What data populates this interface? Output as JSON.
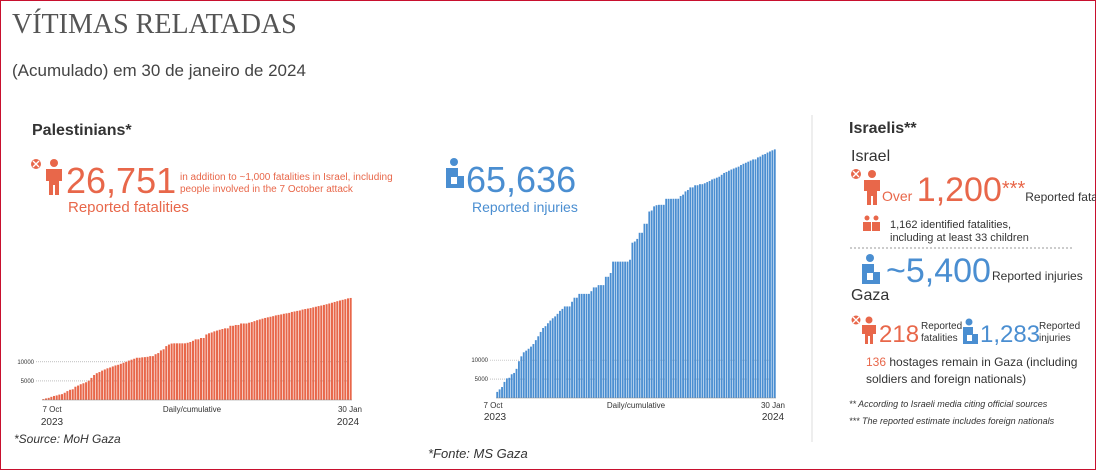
{
  "header": {
    "title": "VÍTIMAS RELATADAS",
    "subtitle": "(Acumulado) em 30 de janeiro de 2024"
  },
  "palestinians": {
    "heading": "Palestinians*",
    "fatalities": {
      "number": "26,751",
      "note": [
        "in addition to ~1,000 fatalities in Israel, including",
        "people involved in the 7 October attack"
      ],
      "label": "Reported fatalities"
    },
    "injuries": {
      "number": "65,636",
      "label": "Reported injuries"
    },
    "source": "*Source: MoH Gaza"
  },
  "charts": [
    {
      "type": "bar",
      "color": "#e8674a",
      "ylim": [
        0,
        27000
      ],
      "yticks": [
        5000,
        10000
      ],
      "grid": true,
      "x_labels": {
        "start": [
          "7 Oct",
          "2023"
        ],
        "middle": "Daily/cumulative",
        "end": [
          "30 Jan",
          "2024"
        ]
      },
      "values": [
        232,
        413,
        560,
        830,
        1055,
        1200,
        1417,
        1537,
        1900,
        2329,
        2670,
        2808,
        3478,
        3785,
        4137,
        4385,
        4651,
        5087,
        5791,
        6546,
        7028,
        7326,
        7703,
        8005,
        8306,
        8525,
        8796,
        9061,
        9227,
        9488,
        9770,
        10022,
        10328,
        10569,
        10812,
        11078,
        11078,
        11180,
        11240,
        11320,
        11500,
        11500,
        12000,
        12300,
        13000,
        13300,
        14128,
        14532,
        14800,
        14854,
        14854,
        14854,
        14854,
        14854,
        15000,
        15207,
        15523,
        15899,
        15899,
        16248,
        16248,
        17177,
        17487,
        17700,
        17997,
        18205,
        18412,
        18608,
        18787,
        18787,
        19453,
        19453,
        19667,
        19667,
        20057,
        20057,
        20057,
        20258,
        20424,
        20674,
        20915,
        21110,
        21320,
        21507,
        21672,
        21822,
        21978,
        22185,
        22313,
        22438,
        22600,
        22722,
        22835,
        23084,
        23210,
        23357,
        23469,
        23708,
        23843,
        23968,
        24100,
        24285,
        24448,
        24620,
        24762,
        24927,
        25105,
        25295,
        25490,
        25700,
        25900,
        26083,
        26257,
        26422,
        26637,
        26751
      ]
    },
    {
      "type": "bar",
      "color": "#4a8ed1",
      "ylim": [
        0,
        66000
      ],
      "yticks": [
        5000,
        10000
      ],
      "grid": true,
      "x_labels": {
        "start": [
          "7 Oct",
          "2023"
        ],
        "middle": "Daily/cumulative",
        "end": [
          "30 Jan",
          "2024"
        ]
      },
      "values": [
        1610,
        2271,
        2900,
        4250,
        5184,
        5339,
        6268,
        6612,
        7696,
        9714,
        11000,
        12065,
        12500,
        13000,
        13561,
        14245,
        15273,
        16297,
        17439,
        18484,
        18967,
        19734,
        20438,
        21048,
        21543,
        22219,
        23000,
        23516,
        24173,
        24173,
        24173,
        25408,
        26475,
        26475,
        27490,
        27490,
        27490,
        27490,
        27490,
        28200,
        29200,
        29200,
        29800,
        29800,
        29800,
        32000,
        32000,
        33000,
        36000,
        36000,
        36000,
        36000,
        36000,
        36000,
        36000,
        36500,
        41000,
        41316,
        42000,
        43616,
        43616,
        46000,
        46000,
        49229,
        49500,
        50594,
        50897,
        51000,
        51000,
        51000,
        52586,
        52586,
        52586,
        52600,
        52600,
        52600,
        53320,
        53688,
        54536,
        54918,
        55600,
        55600,
        56165,
        56165,
        56451,
        56451,
        56697,
        57000,
        57296,
        57697,
        57910,
        58166,
        58416,
        58926,
        59410,
        59680,
        60005,
        60317,
        60582,
        60834,
        61079,
        61504,
        61830,
        62100,
        62388,
        62681,
        62980,
        63000,
        63520,
        63740,
        64220,
        64400,
        64797,
        65087,
        65389,
        65636
      ]
    }
  ],
  "israelis": {
    "heading": "Israelis**",
    "israel": {
      "heading": "Israel",
      "fatalities_prefix": "Over",
      "fatalities": "1,200",
      "fatalities_mark": "***",
      "fatalities_label": "Reported fatalities",
      "identified": [
        "1,162 identified fatalities,",
        "including at least 33 children"
      ],
      "injuries": "~5,400",
      "injuries_label": "Reported injuries"
    },
    "gaza": {
      "heading": "Gaza",
      "fatalities": "218",
      "fatalities_label": [
        "Reported",
        "fatalities"
      ],
      "injuries": "1,283",
      "injuries_label": [
        "Reported",
        "injuries"
      ],
      "hostages_number": "136",
      "hostages_text": [
        " hostages remain in Gaza (including",
        "soldiers and foreign nationals)"
      ]
    },
    "footnotes": [
      "** According to Israeli media citing official sources",
      "*** The reported estimate includes foreign nationals"
    ]
  },
  "footer": {
    "source": "*Fonte: MS Gaza"
  }
}
